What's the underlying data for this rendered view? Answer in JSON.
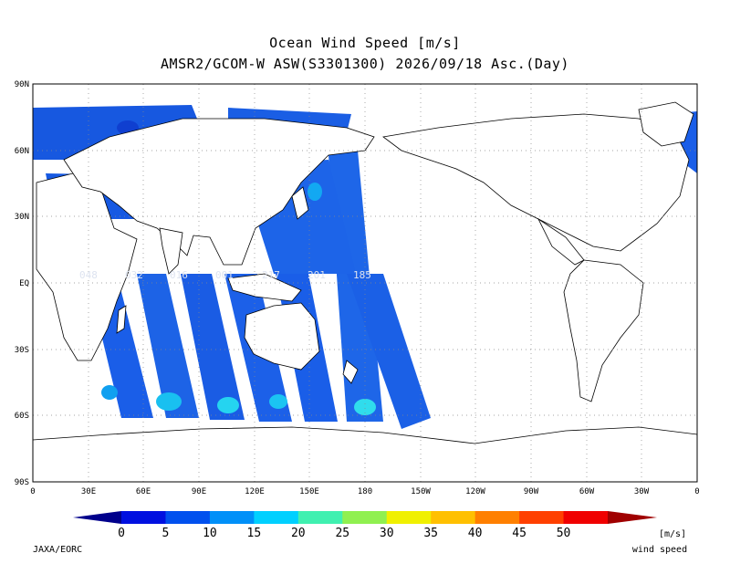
{
  "title": "Ocean Wind Speed [m/s]",
  "subtitle": "AMSR2/GCOM-W ASW(S3301300) 2026/09/18 Asc.(Day)",
  "lat_labels": [
    "90N",
    "60N",
    "30N",
    "EQ",
    "30S",
    "60S",
    "90S"
  ],
  "lon_labels": [
    "0",
    "30E",
    "60E",
    "90E",
    "120E",
    "150E",
    "180",
    "150W",
    "120W",
    "90W",
    "60W",
    "30W",
    "0"
  ],
  "orbit_labels": [
    "048",
    "032",
    "016",
    "001",
    "217",
    "201",
    "185"
  ],
  "colorbar": {
    "ticks": [
      "0",
      "5",
      "10",
      "15",
      "20",
      "25",
      "30",
      "35",
      "40",
      "45",
      "50"
    ],
    "colors": [
      "#0010e0",
      "#0050ee",
      "#0090f8",
      "#00d0ff",
      "#40f0b0",
      "#90f050",
      "#f0f000",
      "#ffc000",
      "#ff8000",
      "#ff4000",
      "#f00000"
    ],
    "under_color": "#00008c",
    "over_color": "#a00000",
    "unit": "[m/s]",
    "quantity": "wind speed"
  },
  "credit": "JAXA/EORC"
}
